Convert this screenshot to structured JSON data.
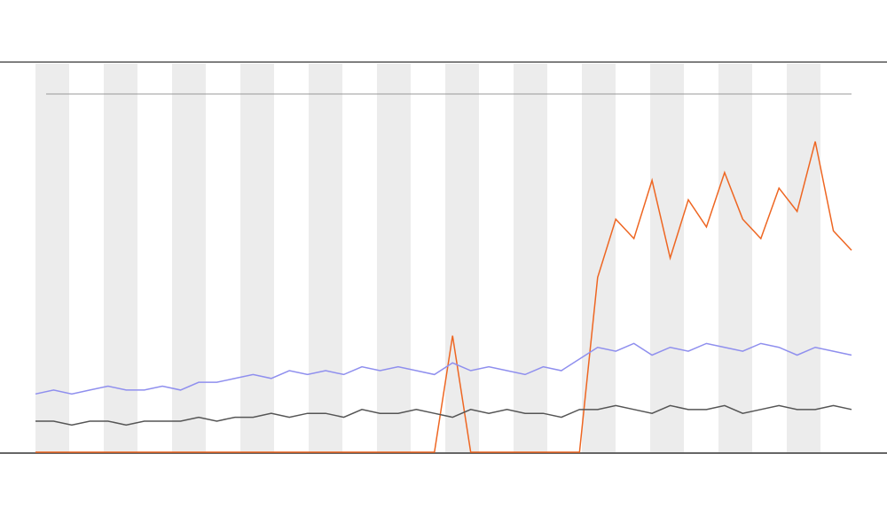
{
  "chart_data": {
    "type": "line",
    "x": [
      0,
      1,
      2,
      3,
      4,
      5,
      6,
      7,
      8,
      9,
      10,
      11,
      12,
      13,
      14,
      15,
      16,
      17,
      18,
      19,
      20,
      21,
      22,
      23,
      24,
      25,
      26,
      27,
      28,
      29,
      30,
      31,
      32,
      33,
      34,
      35,
      36,
      37,
      38,
      39,
      40,
      41,
      42,
      43,
      44,
      45
    ],
    "xlim": [
      0,
      45
    ],
    "ylim": [
      0,
      100
    ],
    "series": [
      {
        "color": "#ee6622",
        "values": [
          0,
          0,
          0,
          0,
          0,
          0,
          0,
          0,
          0,
          0,
          0,
          0,
          0,
          0,
          0,
          0,
          0,
          0,
          0,
          0,
          0,
          0,
          0,
          30,
          0,
          0,
          0,
          0,
          0,
          0,
          0,
          45,
          60,
          55,
          70,
          50,
          65,
          58,
          72,
          60,
          55,
          68,
          62,
          80,
          57,
          52
        ]
      },
      {
        "color": "#8f8fee",
        "values": [
          15,
          16,
          15,
          16,
          17,
          16,
          16,
          17,
          16,
          18,
          18,
          19,
          20,
          19,
          21,
          20,
          21,
          20,
          22,
          21,
          22,
          21,
          20,
          23,
          21,
          22,
          21,
          20,
          22,
          21,
          24,
          27,
          26,
          28,
          25,
          27,
          26,
          28,
          27,
          26,
          28,
          27,
          25,
          27,
          26,
          25
        ]
      },
      {
        "color": "#555555",
        "values": [
          8,
          8,
          7,
          8,
          8,
          7,
          8,
          8,
          8,
          9,
          8,
          9,
          9,
          10,
          9,
          10,
          10,
          9,
          11,
          10,
          10,
          11,
          10,
          9,
          11,
          10,
          11,
          10,
          10,
          9,
          11,
          11,
          12,
          11,
          10,
          12,
          11,
          11,
          12,
          10,
          11,
          12,
          11,
          11,
          12,
          11
        ]
      }
    ]
  }
}
